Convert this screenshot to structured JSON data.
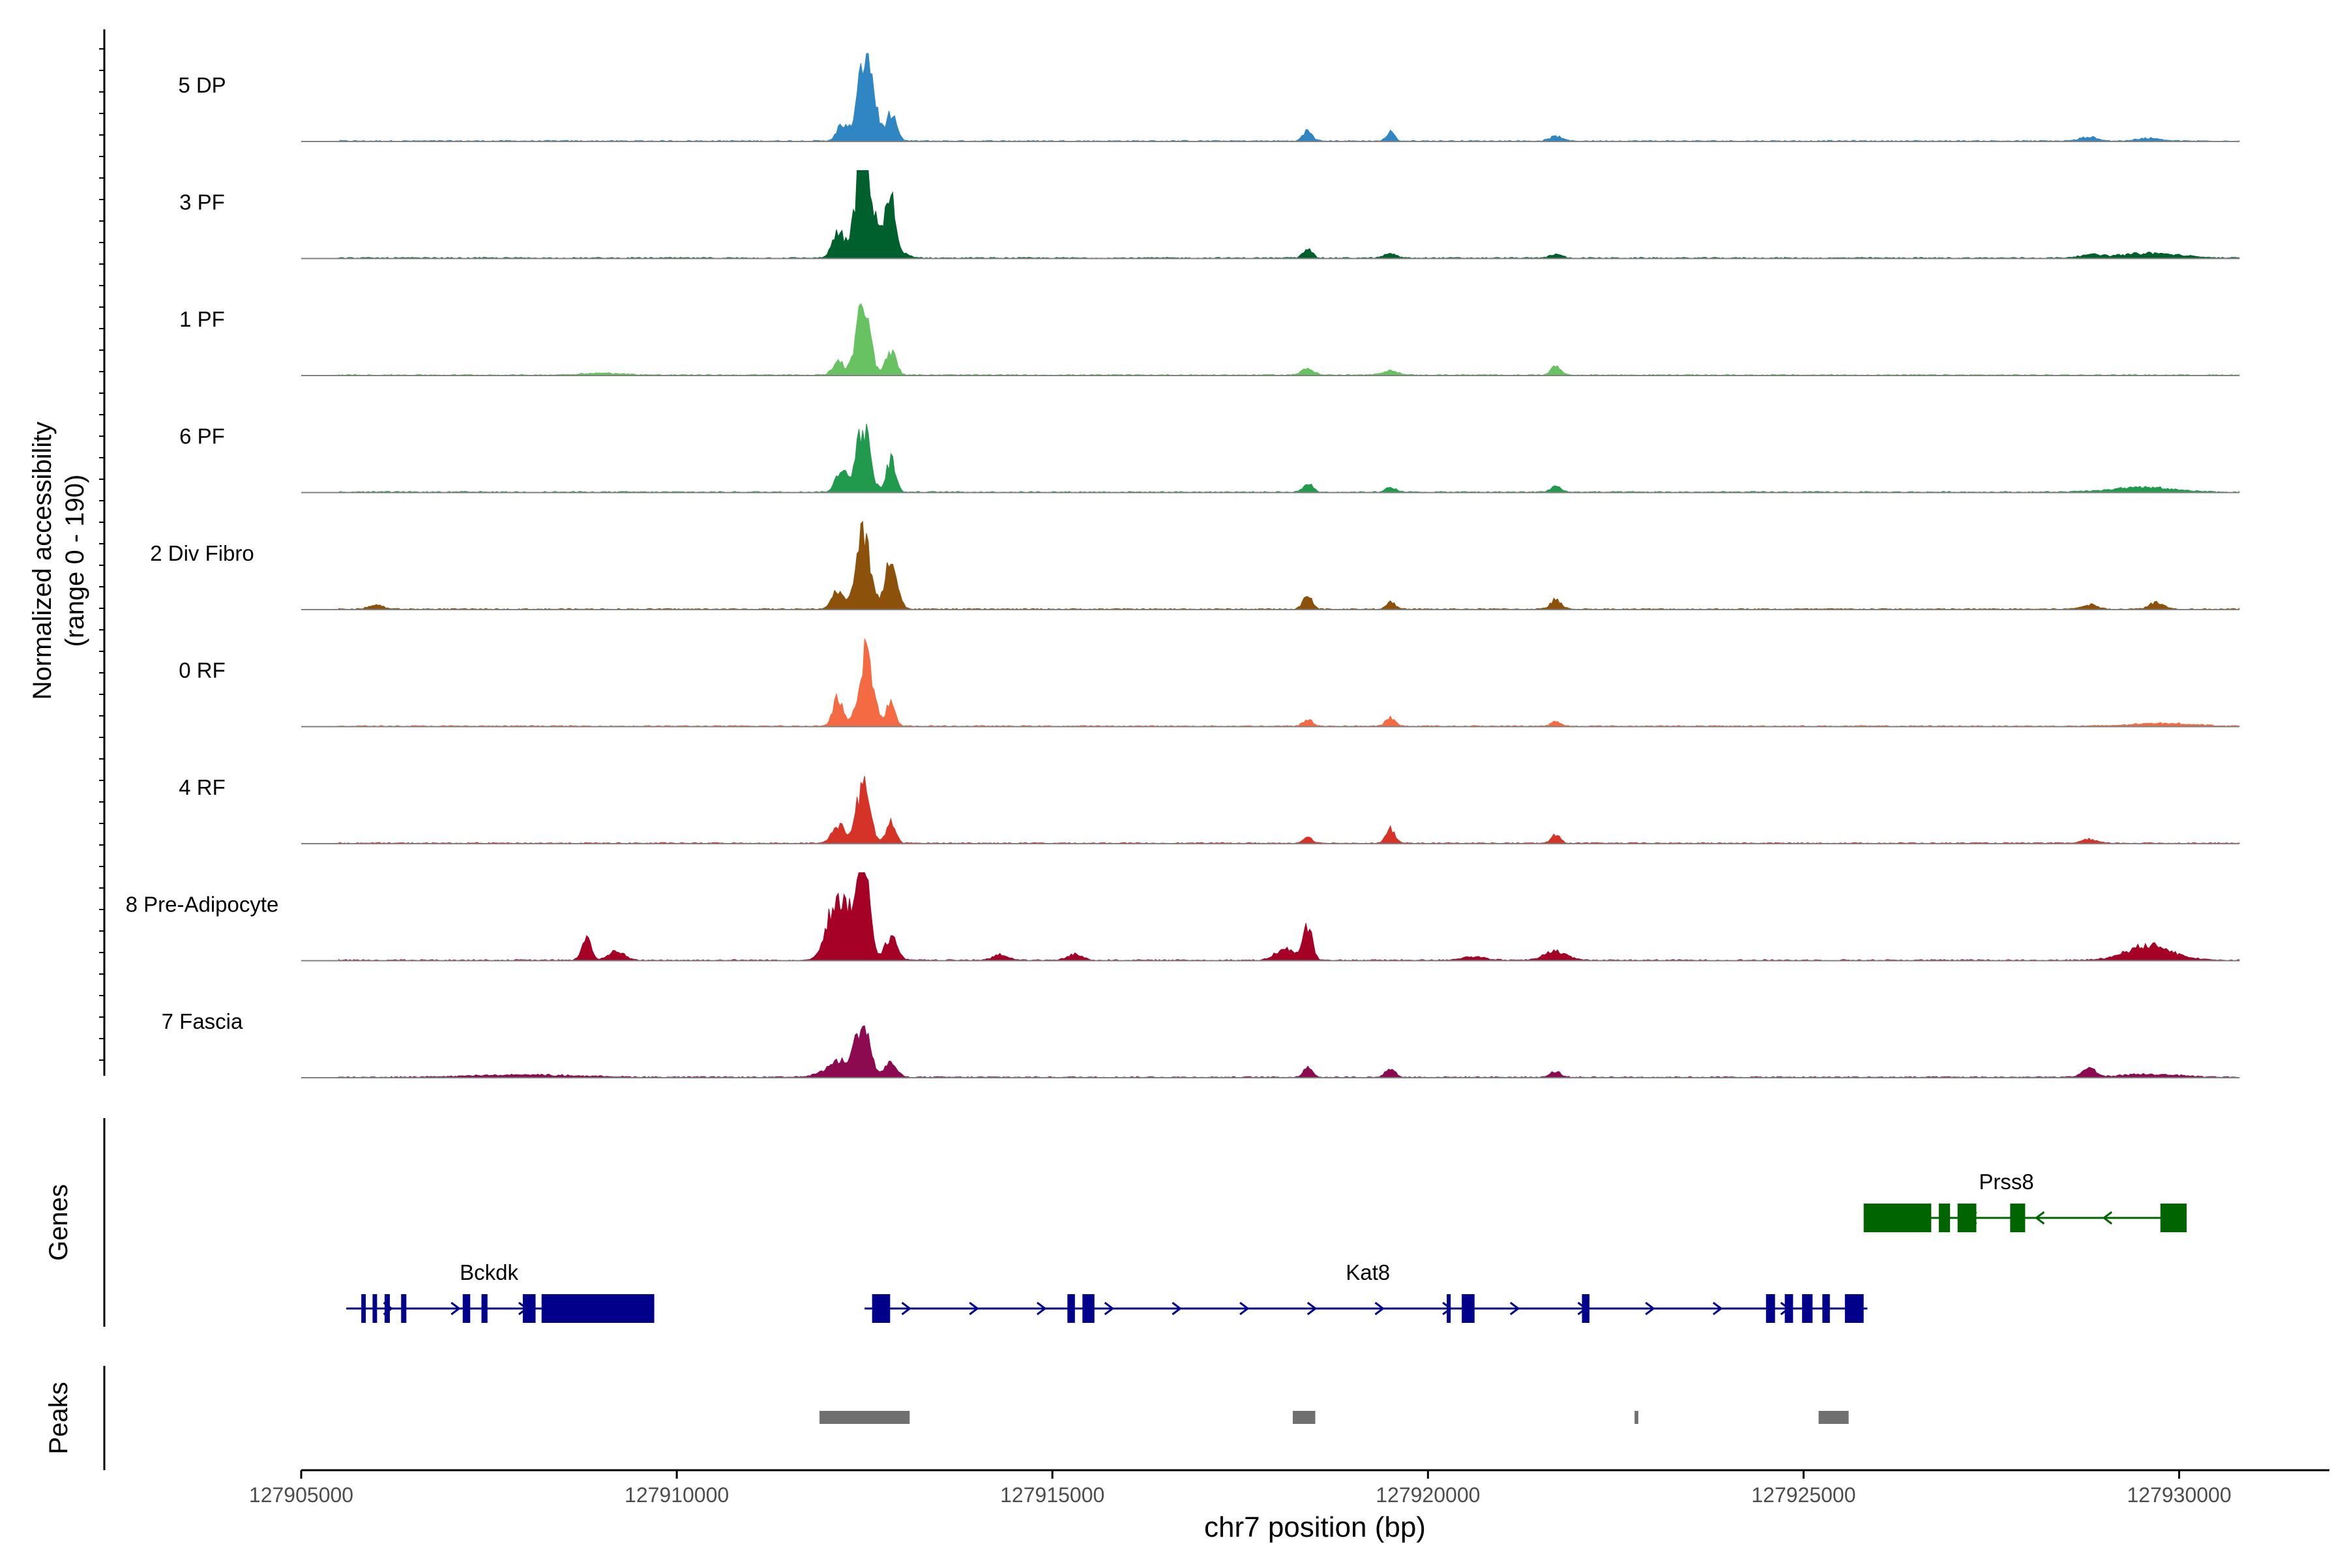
{
  "chart_data": {
    "type": "area",
    "title": "",
    "chromosome": "chr7",
    "xlabel": "chr7 position (bp)",
    "ylabel_line1": "Normalized accessibility",
    "ylabel_line2": "(range 0 - 190)",
    "y_range": [
      0,
      190
    ],
    "xlim": [
      127905000,
      127932000
    ],
    "x_ticks": [
      "127905000",
      "127910000",
      "127915000",
      "127920000",
      "127925000",
      "127930000"
    ],
    "track_extent": [
      127905500,
      127930800
    ],
    "gene_panel_label": "Genes",
    "peak_panel_label": "Peaks",
    "series": [
      {
        "name": "5 DP",
        "color": "#2f86c3",
        "peaks": [
          [
            127912520,
            190,
            100
          ],
          [
            127912200,
            35,
            70
          ],
          [
            127912850,
            55,
            70
          ],
          [
            127918400,
            22,
            60
          ],
          [
            127919500,
            20,
            50
          ],
          [
            127921700,
            10,
            80
          ],
          [
            127928800,
            8,
            120
          ],
          [
            127929600,
            6,
            150
          ]
        ]
      },
      {
        "name": "3 PF",
        "color": "#00602d",
        "peaks": [
          [
            127912480,
            190,
            90
          ],
          [
            127912150,
            50,
            80
          ],
          [
            127912850,
            90,
            60
          ],
          [
            127912650,
            60,
            200
          ],
          [
            127918400,
            22,
            60
          ],
          [
            127919500,
            10,
            80
          ],
          [
            127921700,
            8,
            80
          ],
          [
            127929600,
            10,
            400
          ],
          [
            127928800,
            6,
            150
          ]
        ]
      },
      {
        "name": "1 PF",
        "color": "#69c262",
        "peaks": [
          [
            127912480,
            150,
            90
          ],
          [
            127912150,
            30,
            70
          ],
          [
            127912850,
            50,
            70
          ],
          [
            127918400,
            14,
            80
          ],
          [
            127919500,
            10,
            100
          ],
          [
            127921700,
            18,
            70
          ],
          [
            127909000,
            4,
            300
          ]
        ]
      },
      {
        "name": "6 PF",
        "color": "#229a4e",
        "peaks": [
          [
            127912480,
            140,
            90
          ],
          [
            127912200,
            45,
            80
          ],
          [
            127912850,
            70,
            60
          ],
          [
            127918400,
            20,
            60
          ],
          [
            127919500,
            12,
            60
          ],
          [
            127921700,
            12,
            70
          ],
          [
            127929500,
            10,
            400
          ]
        ]
      },
      {
        "name": "2 Div Fibro",
        "color": "#8c510a",
        "peaks": [
          [
            127912480,
            165,
            90
          ],
          [
            127912150,
            40,
            80
          ],
          [
            127912850,
            105,
            80
          ],
          [
            127918400,
            30,
            60
          ],
          [
            127919500,
            15,
            60
          ],
          [
            127921700,
            20,
            70
          ],
          [
            127928800,
            10,
            100
          ],
          [
            127929700,
            14,
            100
          ],
          [
            127906000,
            8,
            100
          ]
        ]
      },
      {
        "name": "0 RF",
        "color": "#f46b43",
        "peaks": [
          [
            127912520,
            165,
            90
          ],
          [
            127912150,
            60,
            70
          ],
          [
            127912850,
            50,
            60
          ],
          [
            127918400,
            15,
            60
          ],
          [
            127919500,
            18,
            60
          ],
          [
            127921700,
            10,
            60
          ],
          [
            127929800,
            6,
            400
          ]
        ]
      },
      {
        "name": "4 RF",
        "color": "#d63328",
        "peaks": [
          [
            127912480,
            120,
            90
          ],
          [
            127912150,
            40,
            80
          ],
          [
            127912850,
            45,
            60
          ],
          [
            127918400,
            12,
            60
          ],
          [
            127919500,
            30,
            60
          ],
          [
            127921700,
            20,
            60
          ],
          [
            127928800,
            8,
            100
          ]
        ]
      },
      {
        "name": "8 Pre-Adipocyte",
        "color": "#a50026",
        "peaks": [
          [
            127912480,
            190,
            80
          ],
          [
            127912250,
            100,
            150
          ],
          [
            127912050,
            60,
            100
          ],
          [
            127912850,
            50,
            80
          ],
          [
            127908800,
            50,
            60
          ],
          [
            127909200,
            20,
            100
          ],
          [
            127918400,
            70,
            60
          ],
          [
            127918100,
            25,
            120
          ],
          [
            127921700,
            18,
            150
          ],
          [
            127929600,
            32,
            300
          ],
          [
            127914300,
            12,
            100
          ],
          [
            127915300,
            12,
            100
          ],
          [
            127920600,
            8,
            150
          ]
        ]
      },
      {
        "name": "7 Fascia",
        "color": "#8b0a50",
        "peaks": [
          [
            127912480,
            105,
            90
          ],
          [
            127912200,
            35,
            200
          ],
          [
            127912850,
            30,
            80
          ],
          [
            127918400,
            20,
            60
          ],
          [
            127919500,
            20,
            60
          ],
          [
            127921700,
            12,
            70
          ],
          [
            127928800,
            20,
            80
          ],
          [
            127929600,
            6,
            400
          ],
          [
            127908000,
            5,
            700
          ]
        ]
      }
    ],
    "genes": [
      {
        "name": "Bckdk",
        "strand": "+",
        "color": "#00008b",
        "row": 2,
        "start": 127905600,
        "end": 127909700,
        "label_pos": 127907500,
        "exons": [
          [
            127905800,
            127905860
          ],
          [
            127905950,
            127906010
          ],
          [
            127906110,
            127906180
          ],
          [
            127906330,
            127906400
          ],
          [
            127907150,
            127907250
          ],
          [
            127907400,
            127907480
          ],
          [
            127907950,
            127908120
          ],
          [
            127908200,
            127909700
          ]
        ]
      },
      {
        "name": "Kat8",
        "strand": "+",
        "color": "#00008b",
        "row": 2,
        "start": 127912500,
        "end": 127925850,
        "label_pos": 127919200,
        "exons": [
          [
            127912600,
            127912840
          ],
          [
            127915200,
            127915300
          ],
          [
            127915400,
            127915560
          ],
          [
            127920250,
            127920300
          ],
          [
            127920450,
            127920620
          ],
          [
            127922050,
            127922150
          ],
          [
            127924500,
            127924620
          ],
          [
            127924750,
            127924860
          ],
          [
            127924980,
            127925120
          ],
          [
            127925250,
            127925350
          ],
          [
            127925550,
            127925800
          ]
        ]
      },
      {
        "name": "Prss8",
        "strand": "-",
        "color": "#006400",
        "row": 1,
        "start": 127925800,
        "end": 127930100,
        "label_pos": 127927700,
        "exons": [
          [
            127925800,
            127926700
          ],
          [
            127926800,
            127926950
          ],
          [
            127927050,
            127927300
          ],
          [
            127927750,
            127927950
          ],
          [
            127929750,
            127930100
          ]
        ]
      }
    ],
    "peaks_track": [
      [
        127911900,
        127913100
      ],
      [
        127918200,
        127918500
      ],
      [
        127922750,
        127922800
      ],
      [
        127925200,
        127925600
      ]
    ]
  }
}
